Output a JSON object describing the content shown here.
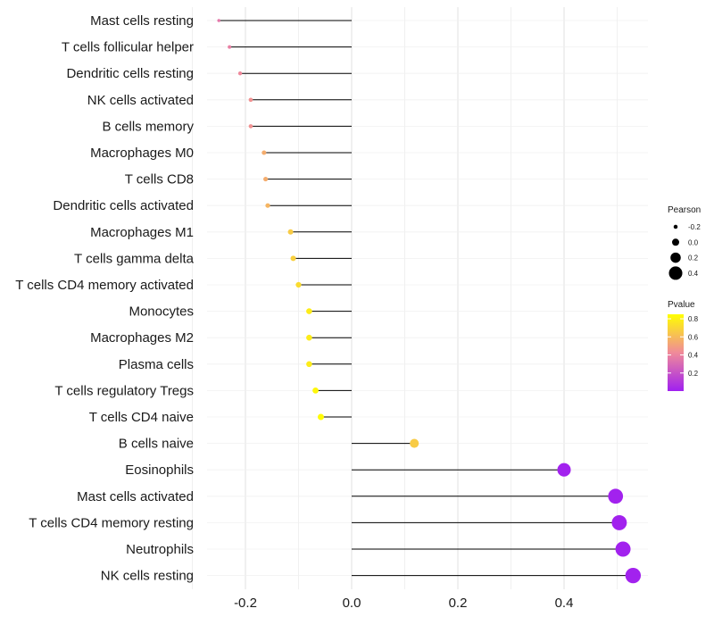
{
  "chart_data": {
    "type": "lollipop",
    "title": "",
    "xlabel": "",
    "ylabel": "",
    "xlim": [
      -0.28,
      0.55
    ],
    "x_ticks": [
      -0.2,
      0.0,
      0.2,
      0.4
    ],
    "x_tick_labels": [
      "-0.2",
      "0.0",
      "0.2",
      "0.4"
    ],
    "grid": true,
    "categories": [
      "Mast cells resting",
      "T cells follicular helper",
      "Dendritic cells resting",
      "NK cells activated",
      "B cells memory",
      "Macrophages M0",
      "T cells CD8",
      "Dendritic cells activated",
      "Macrophages M1",
      "T cells gamma delta",
      "T cells CD4 memory activated",
      "Monocytes",
      "Macrophages M2",
      "Plasma cells",
      "T cells regulatory  Tregs ",
      "T cells CD4 naive",
      "B cells naive",
      "Eosinophils",
      "Mast cells activated",
      "T cells CD4 memory resting",
      "Neutrophils",
      "NK cells resting"
    ],
    "pearson": [
      -0.25,
      -0.23,
      -0.21,
      -0.19,
      -0.19,
      -0.165,
      -0.162,
      -0.158,
      -0.115,
      -0.11,
      -0.1,
      -0.08,
      -0.08,
      -0.08,
      -0.068,
      -0.058,
      0.118,
      0.4,
      0.497,
      0.504,
      0.511,
      0.53
    ],
    "pvalue": [
      0.35,
      0.38,
      0.42,
      0.45,
      0.45,
      0.55,
      0.55,
      0.58,
      0.66,
      0.68,
      0.72,
      0.78,
      0.78,
      0.78,
      0.82,
      0.84,
      0.66,
      0.01,
      0.01,
      0.01,
      0.01,
      0.01
    ],
    "legend_size": {
      "title": "Pearson",
      "labels": [
        "-0.2",
        "0.0",
        "0.2",
        "0.4"
      ],
      "values": [
        -0.2,
        0.0,
        0.2,
        0.4
      ]
    },
    "legend_color": {
      "title": "Pvalue",
      "labels": [
        "0.8",
        "0.6",
        "0.4",
        "0.2"
      ],
      "values": [
        0.8,
        0.6,
        0.4,
        0.2
      ],
      "range": [
        0.0,
        0.85
      ],
      "low_color": "#a020f0",
      "high_color": "#ffff00"
    },
    "legend_position": "right"
  }
}
